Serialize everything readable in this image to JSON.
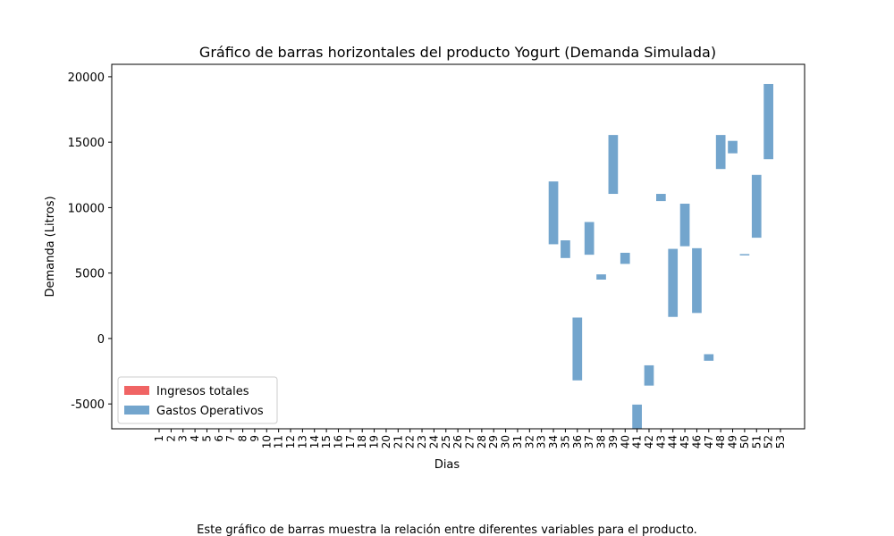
{
  "chart_data": {
    "type": "floating_bar",
    "title": "Gráfico de barras horizontales del producto Yogurt (Demanda Simulada)",
    "xlabel": "Dias",
    "ylabel": "Demanda (Litros)",
    "caption": "Este gráfico de barras muestra la relación entre diferentes variables para el producto.",
    "categories": [
      "1",
      "2",
      "3",
      "4",
      "5",
      "6",
      "7",
      "8",
      "9",
      "10",
      "11",
      "12",
      "13",
      "14",
      "15",
      "16",
      "17",
      "18",
      "19",
      "20",
      "21",
      "22",
      "23",
      "24",
      "25",
      "26",
      "27",
      "28",
      "29",
      "30",
      "31",
      "32",
      "33",
      "34",
      "35",
      "36",
      "37",
      "38",
      "39",
      "40",
      "41",
      "42",
      "43",
      "44",
      "45",
      "46",
      "47",
      "48",
      "49",
      "50",
      "51",
      "52",
      "53"
    ],
    "ylim": [
      -6900,
      20950
    ],
    "yticks": [
      -5000,
      0,
      5000,
      10000,
      15000,
      20000
    ],
    "legend": "lower left",
    "series": [
      {
        "name": "Ingresos totales",
        "color": "#f06464",
        "values": [
          null,
          null,
          null,
          null,
          null,
          null,
          null,
          null,
          null,
          null,
          null,
          null,
          null,
          null,
          null,
          null,
          null,
          null,
          null,
          null,
          null,
          null,
          null,
          null,
          null,
          null,
          null,
          null,
          null,
          null,
          null,
          null,
          null,
          null,
          null,
          null,
          null,
          null,
          null,
          null,
          null,
          null,
          null,
          null,
          null,
          null,
          null,
          null,
          null,
          null,
          null,
          null,
          null
        ]
      },
      {
        "name": "Gastos Operativos",
        "color": "#73a5cd",
        "values": [
          null,
          null,
          null,
          null,
          null,
          null,
          null,
          null,
          null,
          null,
          null,
          null,
          null,
          null,
          null,
          null,
          null,
          null,
          null,
          null,
          null,
          null,
          null,
          null,
          null,
          null,
          null,
          null,
          null,
          null,
          null,
          null,
          null,
          [
            7200,
            12000
          ],
          [
            6150,
            7500
          ],
          [
            -3200,
            1600
          ],
          [
            6400,
            8900
          ],
          [
            4500,
            4900
          ],
          [
            11050,
            15550
          ],
          [
            5700,
            6550
          ],
          [
            -7000,
            -5050
          ],
          [
            -3600,
            -2050
          ],
          [
            10500,
            11050
          ],
          [
            1650,
            6850
          ],
          [
            7050,
            10300
          ],
          [
            1950,
            6900
          ],
          [
            -1700,
            -1200
          ],
          [
            12950,
            15550
          ],
          [
            14150,
            15100
          ],
          [
            6350,
            6450
          ],
          [
            7700,
            12500
          ],
          [
            13700,
            19450
          ],
          null
        ]
      }
    ]
  }
}
